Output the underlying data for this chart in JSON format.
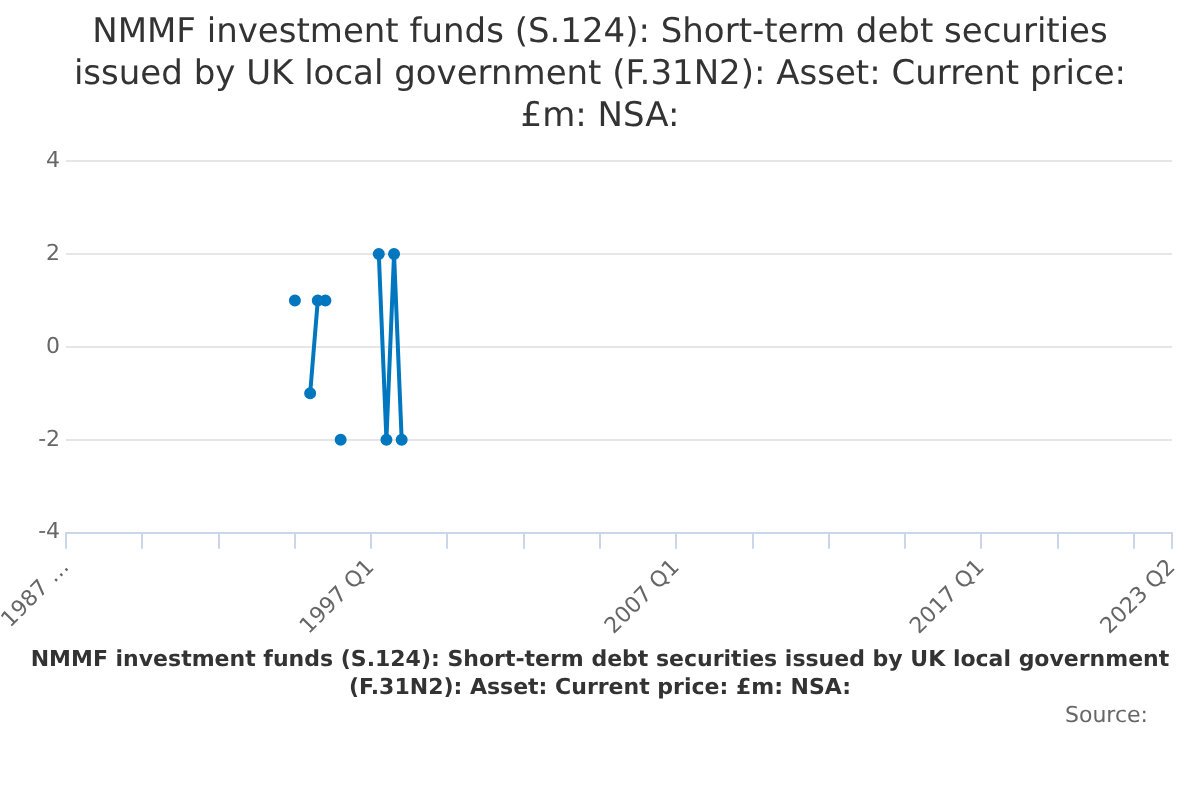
{
  "chart_data": {
    "type": "line",
    "title": "NMMF investment funds (S.124): Short-term debt securities issued by UK local government (F.31N2): Asset: Current price: £m: NSA:",
    "xlabel": "NMMF investment funds (S.124): Short-term debt securities issued by UK local government (F.31N2): Asset: Current price: £m: NSA:",
    "annotations": [
      "Source:"
    ],
    "categories": [
      "1987 …",
      null,
      null,
      null,
      null,
      null,
      null,
      null,
      null,
      null,
      null,
      null,
      null,
      null,
      null,
      null,
      null,
      null,
      null,
      null,
      null,
      null,
      null,
      null,
      null,
      null,
      null,
      null,
      null,
      null,
      null,
      null,
      null,
      null,
      null,
      null,
      null,
      null,
      null,
      null,
      "1997 Q1",
      null,
      null,
      null,
      null,
      null,
      null,
      null,
      null,
      null,
      null,
      null,
      null,
      null,
      null,
      null,
      null,
      null,
      null,
      null,
      null,
      null,
      null,
      null,
      null,
      null,
      null,
      null,
      null,
      null,
      null,
      null,
      null,
      null,
      null,
      null,
      null,
      null,
      null,
      null,
      "2007 Q1",
      null,
      null,
      null,
      null,
      null,
      null,
      null,
      null,
      null,
      null,
      null,
      null,
      null,
      null,
      null,
      null,
      null,
      null,
      null,
      null,
      null,
      null,
      null,
      null,
      null,
      null,
      null,
      null,
      null,
      null,
      null,
      null,
      null,
      null,
      null,
      null,
      null,
      null,
      null,
      "2017 Q1",
      null,
      null,
      null,
      null,
      null,
      null,
      null,
      null,
      null,
      null,
      null,
      null,
      null,
      null,
      null,
      null,
      null,
      null,
      null,
      null,
      null,
      null,
      null,
      null,
      "2023 Q2"
    ],
    "series": [
      {
        "color": "#0077bf",
        "values": [
          null,
          null,
          null,
          null,
          null,
          null,
          null,
          null,
          null,
          null,
          null,
          null,
          null,
          null,
          null,
          null,
          null,
          null,
          null,
          null,
          null,
          null,
          null,
          null,
          null,
          null,
          null,
          null,
          null,
          null,
          1,
          null,
          -1,
          1,
          1,
          null,
          -2,
          null,
          null,
          null,
          null,
          2,
          -2,
          2,
          -2,
          null,
          null,
          null,
          null,
          null,
          null,
          null,
          null,
          null,
          null,
          null,
          null,
          null,
          null,
          null,
          null,
          null,
          null,
          null,
          null,
          null,
          null,
          null,
          null,
          null,
          null,
          null,
          null,
          null,
          null,
          null,
          null,
          null,
          null,
          null,
          null,
          null,
          null,
          null,
          null,
          null,
          null,
          null,
          null,
          null,
          null,
          null,
          null,
          null,
          null,
          null,
          null,
          null,
          null,
          null,
          null,
          null,
          null,
          null,
          null,
          null,
          null,
          null,
          null,
          null,
          null,
          null,
          null,
          null,
          null,
          null,
          null,
          null,
          null,
          null,
          null,
          null,
          null,
          null,
          null,
          null,
          null,
          null,
          null,
          null,
          null,
          null,
          null,
          null,
          null,
          null,
          null,
          null,
          null,
          null,
          null,
          null,
          null,
          null,
          null,
          null
        ]
      }
    ],
    "ylim": [
      -4,
      4
    ],
    "yticks": [
      -4,
      -2,
      0,
      2,
      4
    ],
    "grid": "y",
    "legend": false,
    "marker": "circle",
    "line_style": "solid"
  }
}
